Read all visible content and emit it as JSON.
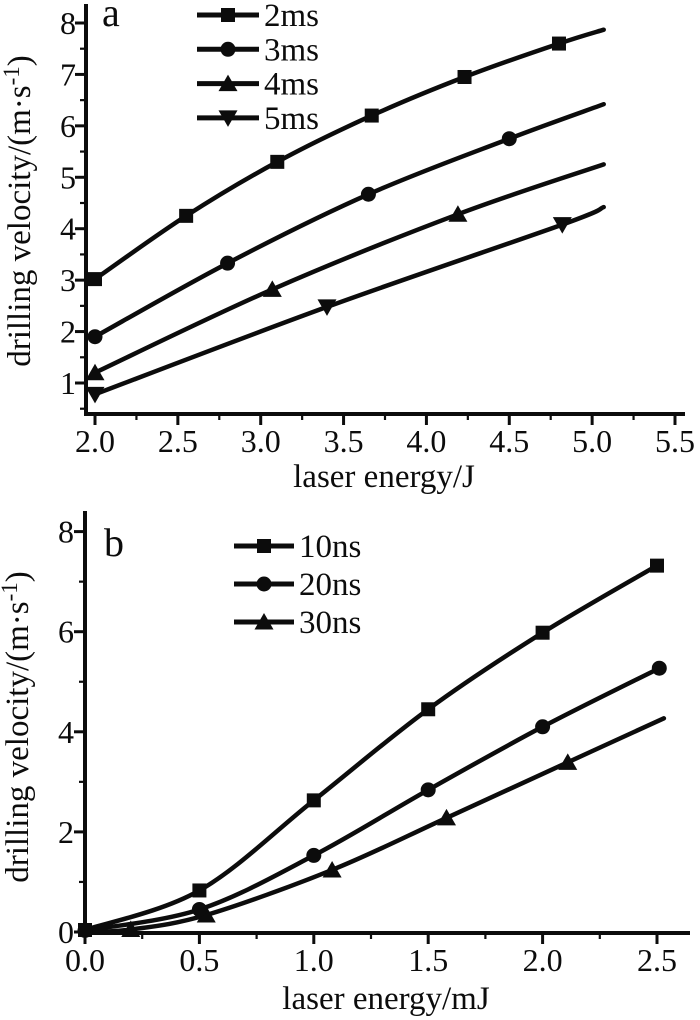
{
  "figure_background": "#ffffff",
  "ink_color": "#0c0c0c",
  "chart_data": {
    "type": "line",
    "panels": [
      {
        "panel_label": "a",
        "xlabel": "laser energy/J",
        "ylabel": "drilling velocity/(m·s⁻¹)",
        "ylabel_parts": {
          "pre": "drilling velocity/(m·s",
          "sup": "-1",
          "post": ")"
        },
        "xlim": [
          1.95,
          5.55
        ],
        "ylim": [
          0.4,
          8.33
        ],
        "x_major_ticks": [
          2.0,
          2.5,
          3.0,
          3.5,
          4.0,
          4.5,
          5.0,
          5.5
        ],
        "x_tick_labels": [
          "2.0",
          "2.5",
          "3.0",
          "3.5",
          "4.0",
          "4.5",
          "5.0",
          "5.5"
        ],
        "x_minor_step": 0.25,
        "y_major_ticks": [
          1,
          2,
          3,
          4,
          5,
          6,
          7,
          8
        ],
        "y_tick_labels": [
          "1",
          "2",
          "3",
          "4",
          "5",
          "6",
          "7",
          "8"
        ],
        "y_minor_step": 0.5,
        "grid": false,
        "legend_position": "top-inside",
        "legend": [
          {
            "label": "2ms",
            "marker": "square"
          },
          {
            "label": "3ms",
            "marker": "circle"
          },
          {
            "label": "4ms",
            "marker": "triangle-up"
          },
          {
            "label": "5ms",
            "marker": "triangle-down"
          }
        ],
        "series": [
          {
            "name": "2ms",
            "marker": "square",
            "points": [
              [
                2.0,
                3.02
              ],
              [
                2.55,
                4.25
              ],
              [
                3.1,
                5.3
              ],
              [
                3.67,
                6.2
              ],
              [
                4.23,
                6.95
              ],
              [
                4.8,
                7.6
              ]
            ],
            "line_end": [
              5.07,
              7.87
            ]
          },
          {
            "name": "3ms",
            "marker": "circle",
            "points": [
              [
                2.0,
                1.9
              ],
              [
                2.8,
                3.33
              ],
              [
                3.65,
                4.67
              ],
              [
                4.5,
                5.75
              ]
            ],
            "line_end": [
              5.07,
              6.42
            ]
          },
          {
            "name": "4ms",
            "marker": "triangle-up",
            "points": [
              [
                2.0,
                1.2
              ],
              [
                3.07,
                2.82
              ],
              [
                4.19,
                4.28
              ]
            ],
            "line_end": [
              5.07,
              5.25
            ]
          },
          {
            "name": "5ms",
            "marker": "triangle-down",
            "points": [
              [
                2.0,
                0.78
              ],
              [
                3.4,
                2.48
              ],
              [
                4.82,
                4.08
              ]
            ],
            "line_end": [
              5.07,
              4.42
            ]
          }
        ]
      },
      {
        "panel_label": "b",
        "xlabel": "laser energy/mJ",
        "ylabel": "drilling velocity/(m·s⁻¹)",
        "ylabel_parts": {
          "pre": "drilling velocity/(m·s",
          "sup": "-1",
          "post": ")"
        },
        "xlim": [
          0.0,
          2.63
        ],
        "ylim": [
          0.0,
          8.38
        ],
        "x_major_ticks": [
          0.0,
          0.5,
          1.0,
          1.5,
          2.0,
          2.5
        ],
        "x_tick_labels": [
          "0.0",
          "0.5",
          "1.0",
          "1.5",
          "2.0",
          "2.5"
        ],
        "x_minor_step": 0.25,
        "y_major_ticks": [
          0,
          2,
          4,
          6,
          8
        ],
        "y_tick_labels": [
          "0",
          "2",
          "4",
          "6",
          "8"
        ],
        "y_minor_step": 1,
        "grid": false,
        "legend_position": "top-inside",
        "legend": [
          {
            "label": "10ns",
            "marker": "square"
          },
          {
            "label": "20ns",
            "marker": "circle"
          },
          {
            "label": "30ns",
            "marker": "triangle-up"
          }
        ],
        "series": [
          {
            "name": "10ns",
            "marker": "square",
            "points": [
              [
                0.0,
                0.04
              ],
              [
                0.5,
                0.83
              ],
              [
                1.0,
                2.63
              ],
              [
                1.5,
                4.45
              ],
              [
                2.0,
                5.98
              ],
              [
                2.5,
                7.32
              ]
            ]
          },
          {
            "name": "20ns",
            "marker": "circle",
            "points": [
              [
                0.0,
                0.03
              ],
              [
                0.5,
                0.45
              ],
              [
                1.0,
                1.53
              ],
              [
                1.5,
                2.84
              ],
              [
                2.0,
                4.1
              ],
              [
                2.51,
                5.27
              ]
            ]
          },
          {
            "name": "30ns",
            "marker": "triangle-up",
            "line_start": [
              0.0,
              0.0
            ],
            "points": [
              [
                0.2,
                0.05
              ],
              [
                0.53,
                0.34
              ],
              [
                1.08,
                1.24
              ],
              [
                1.58,
                2.28
              ],
              [
                2.11,
                3.39
              ]
            ],
            "line_end": [
              2.53,
              4.27
            ]
          }
        ]
      }
    ]
  }
}
